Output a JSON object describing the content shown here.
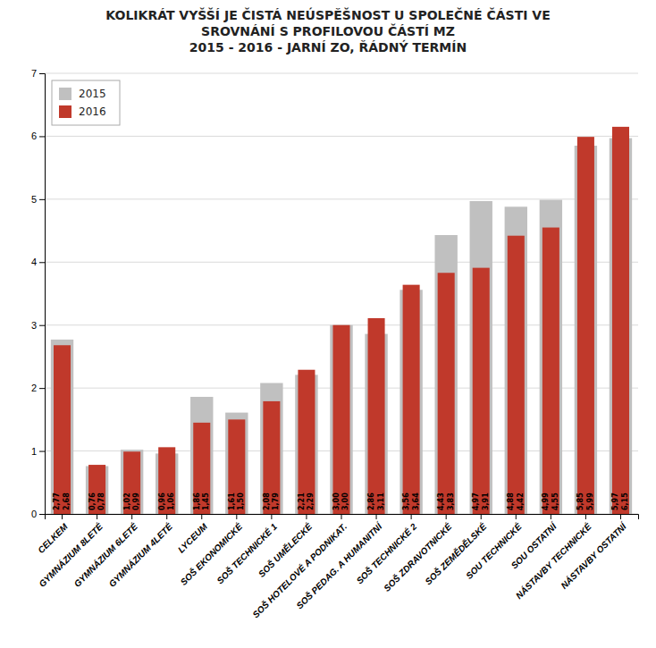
{
  "chart_data": {
    "type": "bar",
    "title": "KOLIKRÁT VYŠŠÍ JE ČISTÁ NEÚSPĚŠNOST U SPOLEČNÉ ČÁSTI VE\nSROVNÁNÍ S PROFILOVOU ČÁSTÍ MZ\n2015 - 2016 - JARNÍ ZO, ŘÁDNÝ TERMÍN",
    "categories": [
      "CELKEM",
      "GYMNÁZIUM 8LETÉ",
      "GYMNÁZIUM 6LETÉ",
      "GYMNÁZIUM 4LETÉ",
      "LYCEUM",
      "SOŠ EKONOMICKÉ",
      "SOŠ TECHNICKÉ 1",
      "SOŠ UMĚLECKÉ",
      "SOŠ HOTELOVÉ A PODNIKAT.",
      "SOŠ PEDAG. A HUMANITNÍ",
      "SOŠ TECHNICKÉ 2",
      "SOŠ ZDRAVOTNICKÉ",
      "SOŠ ZEMĚDĚLSKÉ",
      "SOU TECHNICKÉ",
      "SOU OSTATNÍ",
      "NÁSTAVBY TECHNICKÉ",
      "NÁSTAVBY OSTATNÍ"
    ],
    "series": [
      {
        "name": "2015",
        "color": "#c0c0c0",
        "values": [
          2.77,
          0.76,
          1.02,
          0.96,
          1.86,
          1.61,
          2.08,
          2.21,
          3.0,
          2.86,
          3.56,
          4.43,
          4.97,
          4.88,
          4.99,
          5.85,
          5.97
        ],
        "value_labels": [
          "2,77",
          "0,76",
          "1,02",
          "0,96",
          "1,86",
          "1,61",
          "2,08",
          "2,21",
          "3,00",
          "2,86",
          "3,56",
          "4,43",
          "4,97",
          "4,88",
          "4,99",
          "5,85",
          "5,97"
        ]
      },
      {
        "name": "2016",
        "color": "#c0392b",
        "values": [
          2.68,
          0.78,
          0.99,
          1.06,
          1.45,
          1.5,
          1.79,
          2.29,
          3.0,
          3.11,
          3.64,
          3.83,
          3.91,
          4.42,
          4.55,
          5.99,
          6.15
        ],
        "value_labels": [
          "2,68",
          "0,78",
          "0,99",
          "1,06",
          "1,45",
          "1,50",
          "1,79",
          "2,29",
          "3,00",
          "3,11",
          "3,64",
          "3,83",
          "3,91",
          "4,42",
          "4,55",
          "5,99",
          "6,15"
        ]
      }
    ],
    "ylim": [
      0,
      7
    ],
    "yticks": [
      0,
      1,
      2,
      3,
      4,
      5,
      6,
      7
    ],
    "grid": true,
    "legend": "upper left",
    "data_labels": true
  }
}
